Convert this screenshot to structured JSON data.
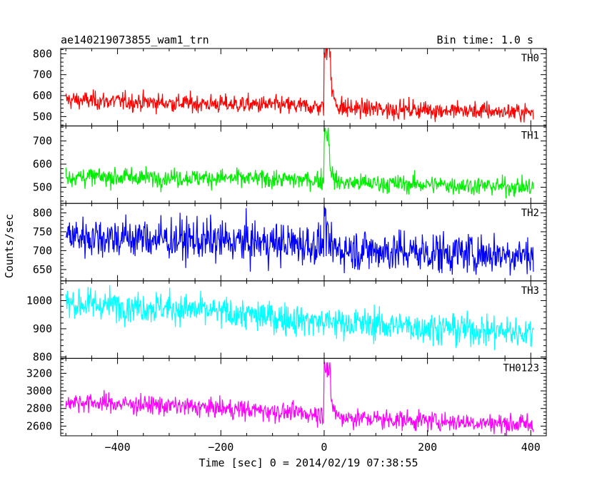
{
  "header": {
    "left_title": "ae140219073855_wam1_trn",
    "right_title": "Bin time: 1.0 s"
  },
  "chart_data": {
    "type": "line",
    "title": "ae140219073855_wam1_trn",
    "subtitle": "Bin time: 1.0 s",
    "xlabel": "Time [sec] 0 = 2014/02/19 07:38:55",
    "ylabel": "Counts/sec",
    "xlim": [
      -510,
      430
    ],
    "x_ticks": [
      -400,
      -200,
      0,
      200,
      400
    ],
    "x_tick_labels": [
      "−400",
      "−200",
      "0",
      "200",
      "400"
    ],
    "x_range": [
      -500,
      405
    ],
    "bin": 1.0,
    "grid": false,
    "panels": [
      {
        "name": "TH0",
        "color": "#ff0000",
        "ylim": [
          455,
          825
        ],
        "y_ticks": [
          500,
          600,
          700,
          800
        ],
        "baseline": [
          [
            -500,
            580
          ],
          [
            -300,
            565
          ],
          [
            -100,
            555
          ],
          [
            0,
            545
          ],
          [
            20,
            540
          ],
          [
            200,
            532
          ],
          [
            405,
            520
          ]
        ],
        "noise": 22,
        "spike": {
          "t_start": 0,
          "t_end": 12,
          "peak": 880,
          "decay": 6
        }
      },
      {
        "name": "TH1",
        "color": "#00ee00",
        "ylim": [
          430,
          765
        ],
        "y_ticks": [
          500,
          600,
          700
        ],
        "baseline": [
          [
            -500,
            545
          ],
          [
            -200,
            540
          ],
          [
            0,
            530
          ],
          [
            20,
            520
          ],
          [
            200,
            512
          ],
          [
            405,
            500
          ]
        ],
        "noise": 20,
        "spike": {
          "t_start": 0,
          "t_end": 10,
          "peak": 760,
          "decay": 5
        }
      },
      {
        "name": "TH2",
        "color": "#0000ff",
        "ylim": [
          620,
          825
        ],
        "y_ticks": [
          650,
          700,
          750,
          800
        ],
        "baseline": [
          [
            -500,
            740
          ],
          [
            -300,
            730
          ],
          [
            -100,
            720
          ],
          [
            0,
            715
          ],
          [
            20,
            705
          ],
          [
            200,
            695
          ],
          [
            405,
            690
          ]
        ],
        "noise": 28,
        "spike": {
          "t_start": 0,
          "t_end": 3,
          "peak": 820,
          "decay": 2
        }
      },
      {
        "name": "TH3",
        "color": "#00ffff",
        "ylim": [
          795,
          1070
        ],
        "y_ticks": [
          800,
          900,
          1000
        ],
        "baseline": [
          [
            -500,
            990
          ],
          [
            -300,
            975
          ],
          [
            -100,
            940
          ],
          [
            0,
            925
          ],
          [
            200,
            905
          ],
          [
            405,
            885
          ]
        ],
        "noise": 28,
        "spike": null
      },
      {
        "name": "TH0123",
        "color": "#ff00ff",
        "ylim": [
          2490,
          3370
        ],
        "y_ticks": [
          2600,
          2800,
          3000,
          3200
        ],
        "baseline": [
          [
            -500,
            2880
          ],
          [
            -300,
            2830
          ],
          [
            -100,
            2770
          ],
          [
            0,
            2730
          ],
          [
            20,
            2700
          ],
          [
            200,
            2660
          ],
          [
            405,
            2620
          ]
        ],
        "noise": 55,
        "spike": {
          "t_start": 0,
          "t_end": 12,
          "peak": 3330,
          "decay": 6
        }
      }
    ]
  }
}
